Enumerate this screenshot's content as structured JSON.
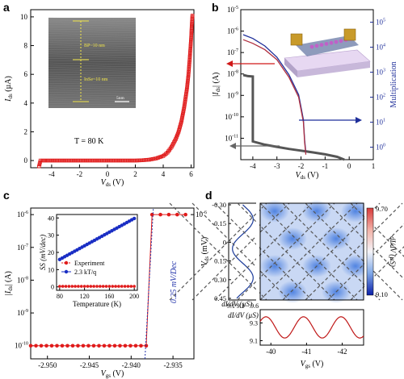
{
  "panel_labels": [
    "a",
    "b",
    "c",
    "d"
  ],
  "chart_data": [
    {
      "panel": "a",
      "type": "scatter",
      "xlabel": "V_ds (V)",
      "ylabel": "I_ds (µA)",
      "xlim": [
        -5.5,
        6.2
      ],
      "ylim": [
        -0.5,
        10.5
      ],
      "xticks": [
        -4,
        -2,
        0,
        2,
        4,
        6
      ],
      "yticks": [
        0,
        2,
        4,
        6,
        8,
        10
      ],
      "annotation": "T = 80 K",
      "inset": {
        "label_top": "BP~10 nm",
        "label_bottom": "InSe~10 nm",
        "scale": "5nm"
      },
      "series": [
        {
          "color": "#e01b1b",
          "points": [
            [
              -4.9,
              -0.4
            ],
            [
              -4.8,
              0
            ],
            [
              -4,
              0
            ],
            [
              -3,
              0
            ],
            [
              -2,
              0
            ],
            [
              -1,
              0
            ],
            [
              0,
              0
            ],
            [
              1,
              0
            ],
            [
              2,
              0
            ],
            [
              2.5,
              0.02
            ],
            [
              3,
              0.06
            ],
            [
              3.5,
              0.15
            ],
            [
              4,
              0.32
            ],
            [
              4.3,
              0.55
            ],
            [
              4.6,
              0.95
            ],
            [
              4.9,
              1.5
            ],
            [
              5.1,
              2.0
            ],
            [
              5.3,
              2.7
            ],
            [
              5.5,
              3.7
            ],
            [
              5.7,
              5.0
            ],
            [
              5.8,
              5.9
            ],
            [
              5.9,
              7.1
            ],
            [
              6.0,
              8.5
            ],
            [
              6.05,
              9.5
            ],
            [
              6.1,
              10.2
            ]
          ]
        }
      ]
    },
    {
      "panel": "b",
      "type": "line",
      "xlabel": "V_ds (V)",
      "ylabel": "|I_ds| (A)",
      "y2label": "Multiplication",
      "xlim": [
        -4.5,
        1
      ],
      "log_y": true,
      "ylim_exp": [
        -12,
        -5
      ],
      "y2lim_exp": [
        -0.5,
        5.5
      ],
      "xticks": [
        -4,
        -3,
        -2,
        -1,
        0,
        1
      ],
      "yticks_exp": [
        -11,
        -10,
        -9,
        -8,
        -7,
        -6,
        -5
      ],
      "y2ticks_exp": [
        0,
        1,
        2,
        3,
        4,
        5
      ],
      "series": [
        {
          "name": "current",
          "color": "#555555",
          "points": [
            [
              -4.4,
              -8.05
            ],
            [
              -4.2,
              -8.1
            ],
            [
              -4.0,
              -8.12
            ],
            [
              -4.0,
              -11.15
            ],
            [
              -3.5,
              -11.3
            ],
            [
              -3,
              -11.4
            ],
            [
              -2.5,
              -11.5
            ],
            [
              -2,
              -11.58
            ],
            [
              -1.5,
              -11.66
            ],
            [
              -1,
              -11.75
            ],
            [
              -0.5,
              -11.87
            ],
            [
              -0.2,
              -12.0
            ]
          ]
        },
        {
          "name": "multiplication",
          "color": "#b03040",
          "points": [
            [
              -4.4,
              4.3
            ],
            [
              -4,
              4.15
            ],
            [
              -3.5,
              3.9
            ],
            [
              -3,
              3.5
            ],
            [
              -2.5,
              2.8
            ],
            [
              -2.1,
              2.0
            ],
            [
              -1.9,
              1.0
            ],
            [
              -1.85,
              0.2
            ],
            [
              -1.8,
              -0.3
            ]
          ]
        },
        {
          "name": "multiplication_fit",
          "color": "#1f2f9a",
          "points": [
            [
              -4.4,
              4.5
            ],
            [
              -4,
              4.35
            ],
            [
              -3.5,
              4.05
            ],
            [
              -3,
              3.6
            ],
            [
              -2.5,
              2.9
            ],
            [
              -2.1,
              2.1
            ],
            [
              -1.9,
              1.1
            ],
            [
              -1.85,
              0.3
            ],
            [
              -1.8,
              -0.2
            ]
          ]
        }
      ]
    },
    {
      "panel": "c",
      "type": "scatter",
      "xlabel": "V_gs (V)",
      "ylabel": "|I_ds| (A)",
      "log_y": true,
      "xlim": [
        -2.952,
        -2.9325
      ],
      "ylim_exp": [
        -10.4,
        -5.8
      ],
      "xticks": [
        -2.95,
        -2.945,
        -2.94,
        -2.935
      ],
      "xtick_labels": [
        "-2.950",
        "-2.945",
        "-2.940",
        "-2.935"
      ],
      "yticks_exp": [
        -10,
        -9,
        -8,
        -7,
        -6
      ],
      "annotation": "0.25 mV/Dec",
      "series": [
        {
          "name": "low",
          "color": "#e01b1b",
          "x_start": -2.952,
          "x_end": -2.9382,
          "count": 23,
          "y_exp": -10
        },
        {
          "name": "high",
          "color": "#e01b1b",
          "points": [
            [
              -2.9375,
              -6
            ],
            [
              -2.9365,
              -6
            ],
            [
              -2.9355,
              -6
            ],
            [
              -2.9345,
              -6
            ],
            [
              -2.9335,
              -6
            ]
          ]
        },
        {
          "name": "jump",
          "color": "#e01b1b",
          "points": [
            [
              -2.9382,
              -10
            ],
            [
              -2.9375,
              -6
            ]
          ]
        },
        {
          "name": "fit",
          "color": "#2233aa",
          "points": [
            [
              -2.93835,
              -10.4
            ],
            [
              -2.93735,
              -5.8
            ]
          ]
        }
      ],
      "inset": {
        "xlabel": "Temperature (K)",
        "ylabel": "SS (mV/dec)",
        "xlim": [
          75,
          205
        ],
        "ylim": [
          -2,
          42
        ],
        "xticks": [
          80,
          120,
          160,
          200
        ],
        "yticks": [
          0,
          10,
          20,
          30,
          40
        ],
        "legend": [
          "Experiment",
          "2.3 kT/q"
        ],
        "series": [
          {
            "name": "Experiment",
            "color": "#e01b1b",
            "points": [
              [
                80,
                0.3
              ],
              [
                100,
                0.3
              ],
              [
                120,
                0.3
              ],
              [
                140,
                0.3
              ],
              [
                160,
                0.3
              ],
              [
                180,
                0.3
              ],
              [
                200,
                0.3
              ]
            ]
          },
          {
            "name": "2.3 kT/q",
            "color": "#1a2ec4",
            "points": [
              [
                80,
                15.9
              ],
              [
                200,
                39.7
              ]
            ]
          }
        ]
      }
    },
    {
      "panel": "d",
      "type": "heatmap",
      "xlabel": "V_gs (V)",
      "ylabel": "V_ds (mV)",
      "colorbar_label": "dI/dV (µS)",
      "colorbar_range": [
        9.1,
        9.7
      ],
      "colorbar_ticks": [
        "9.70",
        "9.10"
      ],
      "xlim": [
        -39.7,
        -42.6
      ],
      "ylim": [
        -0.3,
        0.45
      ],
      "xticks": [
        -40,
        -41,
        -42
      ],
      "yticks": [
        -0.3,
        -0.15,
        0,
        0.15,
        0.3,
        0.45
      ],
      "ytick_labels": [
        "-0.30",
        "-0.15",
        "0",
        "0.15",
        "0.30",
        "0.45"
      ],
      "side_profile": {
        "xlabel": "dI/dV (µS)",
        "xlim": [
          9.05,
          9.65
        ],
        "xticks": [
          "9.1",
          "9.3",
          "9.6"
        ]
      },
      "bottom_profile": {
        "ylabel": "dI/dV (µS)",
        "ylim": [
          9.05,
          9.45
        ],
        "yticks": [
          "9.1",
          "9.3"
        ]
      }
    }
  ]
}
